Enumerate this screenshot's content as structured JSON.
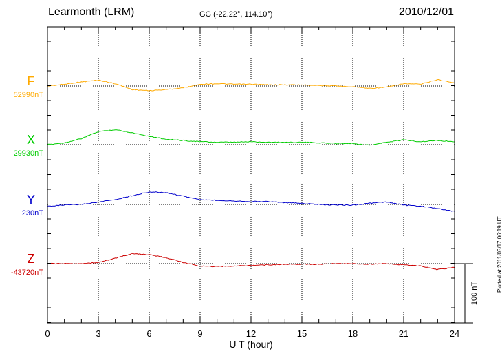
{
  "header": {
    "title": "Learmonth (LRM)",
    "coords": "GG (-22.22°, 114.10°)",
    "date": "2010/12/01",
    "plotted": "Plotted at 2011/03/17 06:19 UT"
  },
  "chart_data": {
    "type": "line",
    "title": "Learmonth (LRM)",
    "xlabel": "U T (hour)",
    "xlim": [
      0,
      24
    ],
    "xticks": [
      0,
      3,
      6,
      9,
      12,
      15,
      18,
      21,
      24
    ],
    "grid": true,
    "scale_bar": {
      "value": 100,
      "label": "100 nT"
    },
    "series": [
      {
        "name": "F",
        "color": "#ffaa00",
        "baseline_label": "52990nT",
        "x": [
          0,
          1,
          2,
          3,
          4,
          5,
          6,
          7,
          8,
          9,
          10,
          11,
          12,
          13,
          14,
          15,
          16,
          17,
          18,
          19,
          20,
          21,
          22,
          23,
          24
        ],
        "y": [
          0,
          3,
          7,
          10,
          4,
          -6,
          -8,
          -6,
          -3,
          3,
          4,
          3,
          3,
          2,
          2,
          2,
          1,
          0,
          -1,
          -4,
          -2,
          4,
          3,
          11,
          5
        ]
      },
      {
        "name": "X",
        "color": "#00cc00",
        "baseline_label": "29930nT",
        "x": [
          0,
          1,
          2,
          3,
          4,
          5,
          6,
          7,
          8,
          9,
          10,
          11,
          12,
          13,
          14,
          15,
          16,
          17,
          18,
          19,
          20,
          21,
          22,
          23,
          24
        ],
        "y": [
          0,
          3,
          10,
          22,
          25,
          20,
          14,
          9,
          7,
          5,
          4,
          4,
          5,
          4,
          4,
          4,
          3,
          2,
          2,
          -1,
          4,
          8,
          5,
          7,
          5
        ]
      },
      {
        "name": "Y",
        "color": "#0000cc",
        "baseline_label": "230nT",
        "x": [
          0,
          1,
          2,
          3,
          4,
          5,
          6,
          7,
          8,
          9,
          10,
          11,
          12,
          13,
          14,
          15,
          16,
          17,
          18,
          19,
          20,
          21,
          22,
          23,
          24
        ],
        "y": [
          -3,
          -1,
          0,
          4,
          8,
          15,
          21,
          20,
          14,
          8,
          7,
          6,
          5,
          5,
          3,
          2,
          0,
          -1,
          -1,
          2,
          4,
          -1,
          -3,
          -7,
          -12
        ]
      },
      {
        "name": "Z",
        "color": "#cc0000",
        "baseline_label": "-43720nT",
        "x": [
          0,
          1,
          2,
          3,
          4,
          5,
          6,
          7,
          8,
          9,
          10,
          11,
          12,
          13,
          14,
          15,
          16,
          17,
          18,
          19,
          20,
          21,
          22,
          23,
          24
        ],
        "y": [
          0,
          0,
          0,
          2,
          9,
          17,
          15,
          10,
          2,
          -4,
          -5,
          -4,
          -3,
          -2,
          -1,
          -1,
          -1,
          0,
          0,
          -1,
          0,
          -2,
          -4,
          -10,
          -6
        ]
      }
    ]
  }
}
